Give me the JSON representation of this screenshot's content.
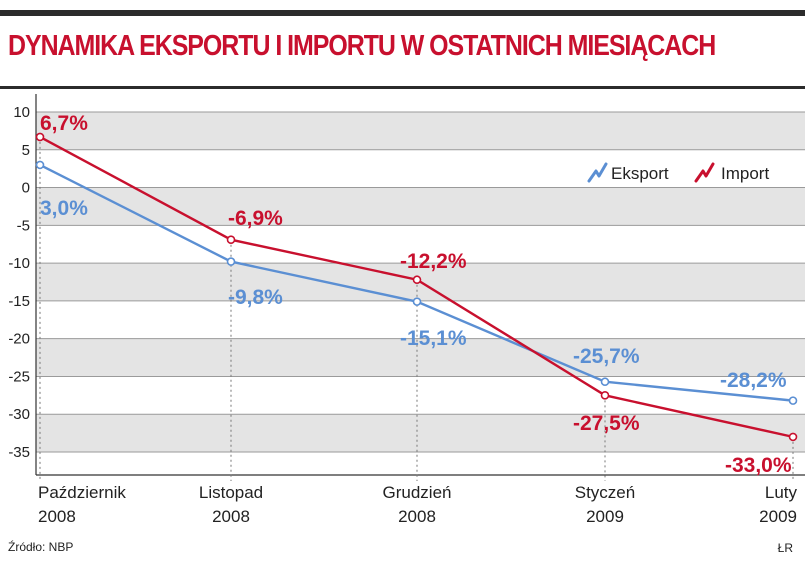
{
  "title": "DYNAMIKA EKSPORTU I IMPORTU W OSTATNICH MIESIĄCACH",
  "source": "Źródło: NBP",
  "author": "ŁR",
  "colors": {
    "eksport": "#5b8fd3",
    "import": "#c8102e",
    "band": "#e4e4e4",
    "title": "#c8102e"
  },
  "chart_data": {
    "type": "line",
    "title": "DYNAMIKA EKSPORTU I IMPORTU W OSTATNICH MIESIĄCACH",
    "xlabel": "",
    "ylabel": "",
    "ylim": [
      -40,
      10
    ],
    "yticks": [
      10,
      5,
      0,
      -5,
      -10,
      -15,
      -20,
      -25,
      -30,
      -35
    ],
    "yticklabels": [
      "10",
      "5",
      "0",
      "-5",
      "-10",
      "-15",
      "-20",
      "-25",
      "-30",
      "-35"
    ],
    "categories": [
      [
        "Październik",
        "2008"
      ],
      [
        "Listopad",
        "2008"
      ],
      [
        "Grudzień",
        "2008"
      ],
      [
        "Styczeń",
        "2009"
      ],
      [
        "Luty",
        "2009"
      ]
    ],
    "legend_position": "top-right",
    "grid": true,
    "series": [
      {
        "name": "Eksport",
        "color_key": "eksport",
        "values": [
          3.0,
          -9.8,
          -15.1,
          -25.7,
          -28.2
        ],
        "labels": [
          "3,0%",
          "-9,8%",
          "-15,1%",
          "-25,7%",
          "-28,2%"
        ]
      },
      {
        "name": "Import",
        "color_key": "import",
        "values": [
          6.7,
          -6.9,
          -12.2,
          -27.5,
          -33.0
        ],
        "labels": [
          "6,7%",
          "-6,9%",
          "-12,2%",
          "-27,5%",
          "-33,0%"
        ]
      }
    ]
  }
}
